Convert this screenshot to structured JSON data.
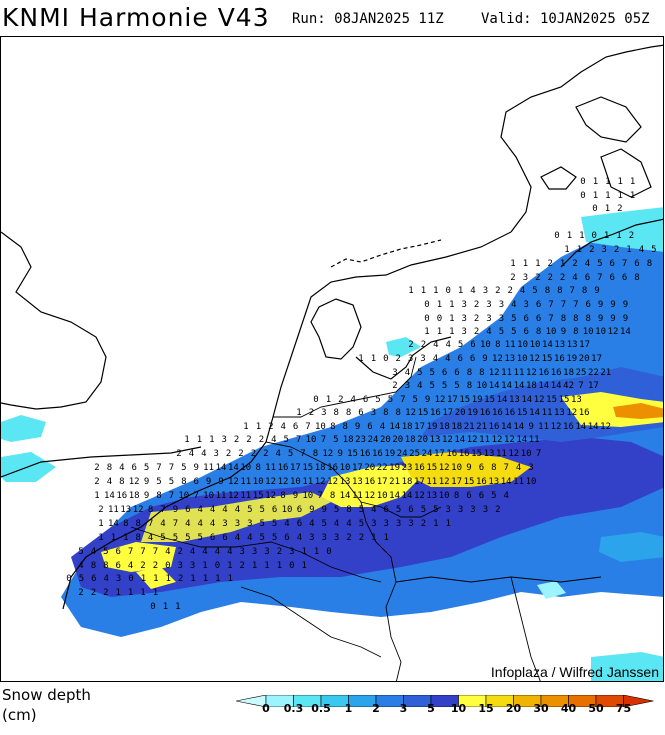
{
  "header": {
    "model": "KNMI Harmonie V43",
    "run": "Run: 08JAN2025 11Z",
    "valid": "Valid: 10JAN2025 05Z"
  },
  "map": {
    "credit": "Infoplaza / Wilfred Janssen",
    "value_rows": [
      "0 1 1 1 1",
      "0 1 1 1 1",
      "0 1 2",
      "0 1 1 0 1 1 2",
      "1 1 2 3 2 1 4 5",
      "1 1 1 2 1 2 4 5 6 7 6 8",
      "2 3 2 2 2 4 6 7 6 6 8",
      "1 1 1 0 1 4 3 2 2 4 5 8 8 7 8 9",
      "0 1 1 3 2 3 3 4 3 6 7 7 7 6 9 9 9",
      "0 0 1 3 2 3 3 5 6 6 7 8 8 8 9 9 9",
      "1 1 1 3 2 4 5 5 6 8 10 9 8 10 10 12 14",
      "2 2 4 4 5 6 10 8 11 10 10 14 13 13 17",
      "1 1 0 2 3 3 4 4 6 6 9 12 13 10 12 15 16 19 20 17",
      "3 4 5 5 6 6 8 8 12 11 11 12 16 16 18 25 22 21",
      "2 3 4 5 5 5 8 10 14 14 14 18 14 14 42 7 17",
      "0 1 2 4 6 5 5 7 5 9 12 17 15 19 15 14 13 14 12 15 15 13",
      "1 2 3 8 8 6 3 8 8 12 15 16 17 20 19 16 16 16 15 14 11 13 12 16",
      "1 1 2 4 6 7 10 8 8 9 6 4 14 18 17 19 18 18 21 21 16 14 14 9 11 12 16 14 14 12",
      "1 1 1 3 2 2 2 4 5 7 10 7 5 18 23 24 20 20 18 20 13 12 14 12 11 12 12 14 11",
      "2 4 4 3 2 2 2 2 4 5 7 8 12 9 15 16 16 19 24 25 24 17 16 16 15 13 11 12 10 7",
      "2 8 4 6 5 7 7 5 9 11 14 14 10 8 11 16 17 15 18 16 10 17 20 22 19 23 16 15 12 10 9 6 8 7 4 3",
      "2 4 8 12 9 5 5 8 6 9 9 12 11 10 12 12 10 11 12 12 13 13 16 17 21 18 17 11 12 17 15 16 13 14 11 10",
      "1 14 16 18 9 8 7 10 7 10 11 12 11 15 12 8 9 10 7 8 14 11 12 10 14 14 12 13 10 8 6 6 5 4",
      "2 11 13 12 8 7 9 6 4 4 4 4 5 5 6 10 6 9 9 5 8 5 4 6 5 6 5 5 3 3 3 3 2",
      "1 14 8 8 7 4 7 4 4 4 3 3 3 5 5 4 6 4 5 4 4 5 3 3 3 3 2 1 1",
      "1 1 1 8 4 5 5 5 5 6 6 4 4 5 5 6 4 3 3 3 2 2 1 1",
      "5 4 5 6 7 7 7 4 2 4 4 4 4 3 3 3 2 3 1 1 0",
      "4 8 8 6 4 2 2 0 3 3 1 0 1 2 1 1 1 0 1",
      "0 5 6 4 3 0 1 1 1 2 1 1 1 1",
      "2 2 2 1 1 1 1",
      "0 1 1"
    ]
  },
  "legend": {
    "title_line1": "Snow depth",
    "title_line2": "(cm)",
    "ticks": [
      "0",
      "0.3",
      "0.5",
      "1",
      "2",
      "3",
      "5",
      "10",
      "15",
      "20",
      "30",
      "40",
      "50",
      "75"
    ],
    "colors": [
      "#9CF4FF",
      "#5BE6F4",
      "#39C8F0",
      "#2BA4EC",
      "#2A7FE6",
      "#2F60D8",
      "#3340C8",
      "#FFFF40",
      "#F4DC10",
      "#F0B400",
      "#EC9000",
      "#E87000",
      "#E04A00"
    ]
  }
}
